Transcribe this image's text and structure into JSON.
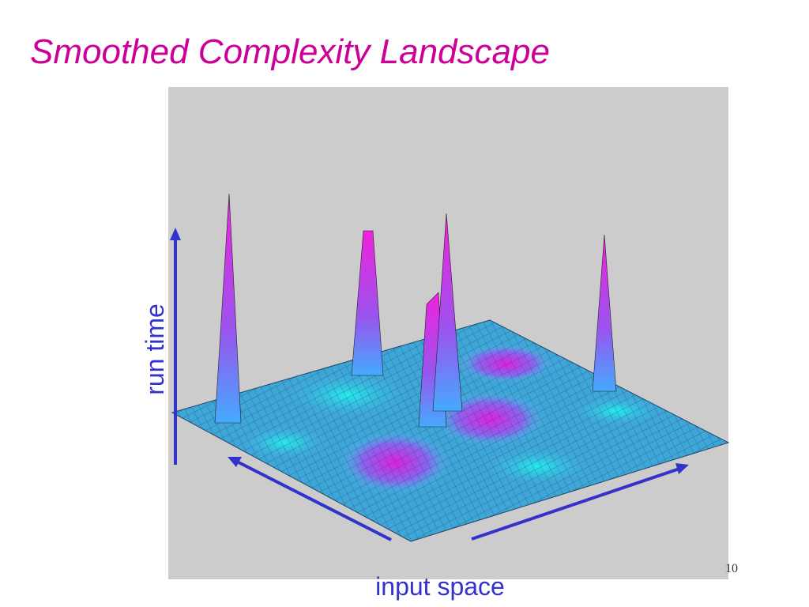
{
  "slide": {
    "title": "Smoothed Complexity Landscape",
    "vertical_label": "run time",
    "horizontal_label": "input space",
    "page_number": "10"
  }
}
